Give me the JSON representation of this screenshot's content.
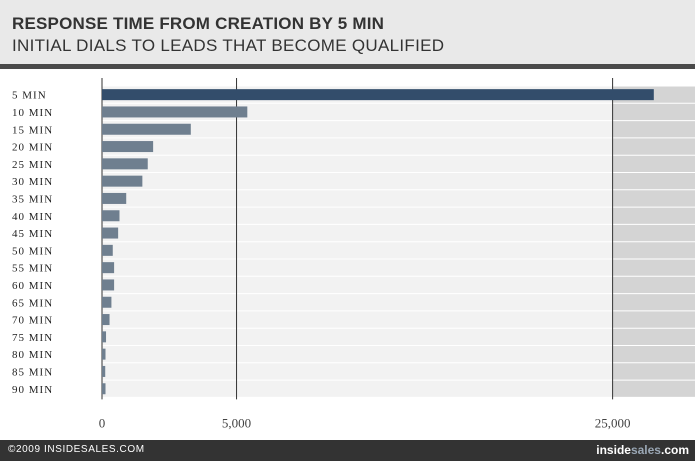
{
  "header": {
    "title": "RESPONSE TIME FROM CREATION BY 5 MIN",
    "subtitle": "INITIAL DIALS TO LEADS THAT BECOME QUALIFIED"
  },
  "footer": {
    "copyright": "©2009 INSIDESALES.COM",
    "brand_part1": "inside",
    "brand_part2": "sales",
    "brand_part3": ".com"
  },
  "colors": {
    "highlight_bar": "#334d6b",
    "bar": "#6f7f8f",
    "band_light": "#f2f2f2",
    "band_dark": "#d4d4d4",
    "axis_line": "#333333"
  },
  "chart_data": {
    "type": "bar",
    "orientation": "horizontal",
    "axis_break": {
      "from": 5500,
      "to": 24000
    },
    "categories": [
      "5 MIN",
      "10 MIN",
      "15 MIN",
      "20 MIN",
      "25 MIN",
      "30 MIN",
      "35 MIN",
      "40 MIN",
      "45 MIN",
      "50 MIN",
      "55 MIN",
      "60 MIN",
      "65 MIN",
      "70 MIN",
      "75 MIN",
      "80 MIN",
      "85 MIN",
      "90 MIN"
    ],
    "values": [
      27000,
      5400,
      3300,
      1900,
      1700,
      1500,
      900,
      650,
      600,
      400,
      450,
      450,
      350,
      280,
      150,
      130,
      120,
      130
    ],
    "highlight": "5 MIN",
    "xticks": [
      0,
      5000,
      25000
    ],
    "xtick_labels": [
      "0",
      "5,000",
      "25,000"
    ],
    "xlim": [
      0,
      29000
    ]
  }
}
